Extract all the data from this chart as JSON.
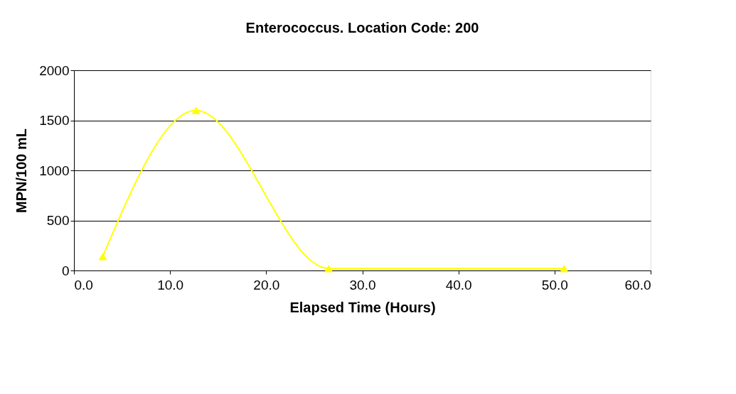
{
  "chart_data": {
    "type": "line",
    "title": "Enterococcus. Location Code: 200",
    "xlabel": "Elapsed Time (Hours)",
    "ylabel": "MPN/100 mL",
    "x": [
      3.0,
      12.7,
      26.5,
      51.0
    ],
    "series": [
      {
        "color": "#ffff00",
        "values": [
          140,
          1600,
          20,
          20
        ]
      }
    ],
    "xlim": [
      0,
      60
    ],
    "xticks": [
      {
        "value": 0,
        "label": "0.0"
      },
      {
        "value": 10,
        "label": "10.0"
      },
      {
        "value": 20,
        "label": "20.0"
      },
      {
        "value": 30,
        "label": "30.0"
      },
      {
        "value": 40,
        "label": "40.0"
      },
      {
        "value": 50,
        "label": "50.0"
      },
      {
        "value": 60,
        "label": "60.0"
      }
    ],
    "ylim": [
      0,
      2000
    ],
    "yticks": [
      0,
      500,
      1000,
      1500,
      2000
    ],
    "grid": "y",
    "marker": "triangle",
    "line_style": "solid"
  }
}
